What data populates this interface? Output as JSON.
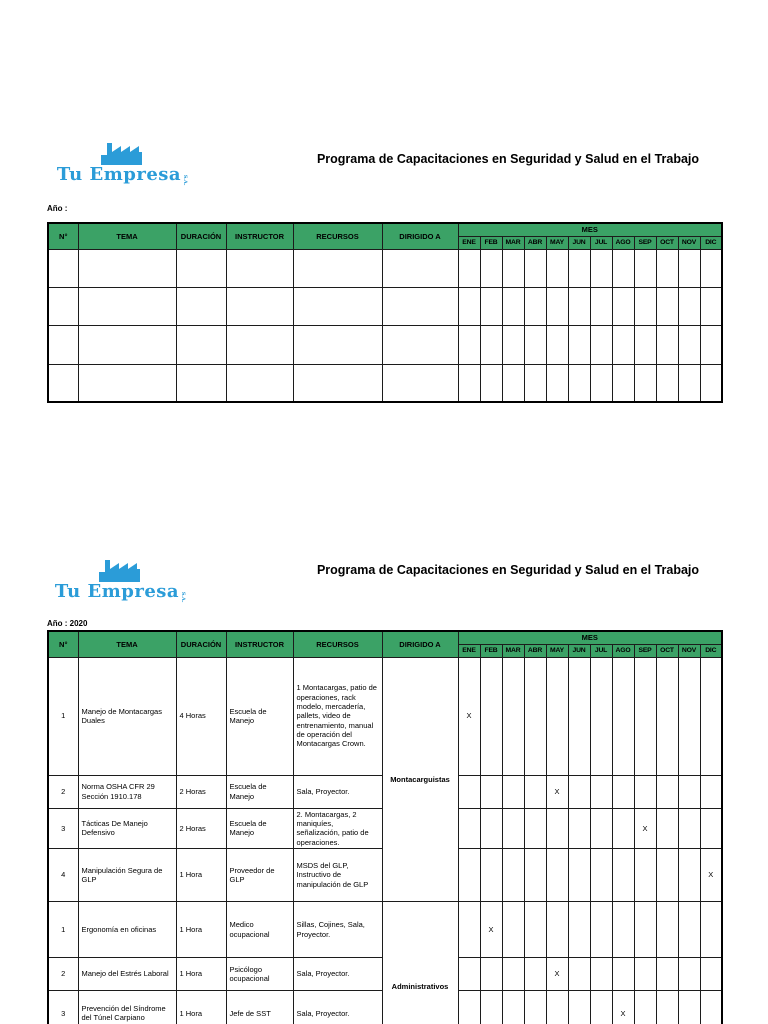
{
  "title": "Programa de Capacitaciones en Seguridad y Salud en el Trabajo",
  "logo": {
    "text": "Tu Empresa",
    "suffix": "S.A."
  },
  "colors": {
    "header_green": "#3BA266",
    "logo_blue": "#2B9CD8"
  },
  "mark": "X",
  "table_headers": {
    "num": "N°",
    "tema": "TEMA",
    "duracion": "DURACIÓN",
    "instructor": "INSTRUCTOR",
    "recursos": "RECURSOS",
    "dirigido": "DIRIGIDO A",
    "mes": "MES",
    "months": [
      "ENE",
      "FEB",
      "MAR",
      "ABR",
      "MAY",
      "JUN",
      "JUL",
      "AGO",
      "SEP",
      "OCT",
      "NOV",
      "DIC"
    ]
  },
  "sections": [
    {
      "year_label": "Año :",
      "empty_rows": 4,
      "groups": []
    },
    {
      "year_label": "Año : 2020",
      "empty_rows": 0,
      "groups": [
        {
          "dirigido_a": "Montacarguistas",
          "rows": [
            {
              "num": "1",
              "tema": "Manejo de Montacargas Duales",
              "duracion": "4 Horas",
              "instructor": "Escuela de Manejo",
              "recursos": "1 Montacargas, patio de operaciones, rack modelo, mercadería, pallets, video de entrenamiento, manual de operación del Montacargas Crown.",
              "mes": "ENE"
            },
            {
              "num": "2",
              "tema": "Norma OSHA CFR 29 Sección 1910.178",
              "duracion": "2 Horas",
              "instructor": "Escuela de Manejo",
              "recursos": "Sala, Proyector.",
              "mes": "MAY"
            },
            {
              "num": "3",
              "tema": "Tácticas De Manejo Defensivo",
              "duracion": "2 Horas",
              "instructor": "Escuela de Manejo",
              "recursos": "2. Montacargas, 2 maniquíes, señalización, patio de operaciones.",
              "mes": "SEP"
            },
            {
              "num": "4",
              "tema": "Manipulación Segura de GLP",
              "duracion": "1 Hora",
              "instructor": "Proveedor de GLP",
              "recursos": "MSDS del GLP, Instructivo de manipulación de GLP",
              "mes": "DIC"
            }
          ]
        },
        {
          "dirigido_a": "Administrativos",
          "rows": [
            {
              "num": "1",
              "tema": "Ergonomía en oficinas",
              "duracion": "1 Hora",
              "instructor": "Medico ocupacional",
              "recursos": "Sillas, Cojines, Sala, Proyector.",
              "mes": "FEB"
            },
            {
              "num": "2",
              "tema": "Manejo del Estrés Laboral",
              "duracion": "1 Hora",
              "instructor": "Psicólogo ocupacional",
              "recursos": "Sala, Proyector.",
              "mes": "MAY"
            },
            {
              "num": "3",
              "tema": "Prevención del Síndrome del Túnel Carpiano",
              "duracion": "1 Hora",
              "instructor": "Jefe de SST",
              "recursos": "Sala, Proyector.",
              "mes": "AGO"
            }
          ]
        }
      ]
    }
  ]
}
